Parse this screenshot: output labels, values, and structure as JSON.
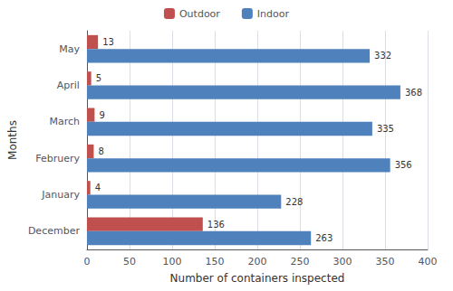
{
  "chart_data": {
    "type": "bar",
    "orientation": "horizontal",
    "categories": [
      "December",
      "January",
      "Februery",
      "March",
      "April",
      "May"
    ],
    "series": [
      {
        "name": "Outdoor",
        "color": "#C0504D",
        "values": [
          136,
          4,
          8,
          9,
          5,
          13
        ]
      },
      {
        "name": "Indoor",
        "color": "#4F81BD",
        "values": [
          263,
          228,
          356,
          335,
          368,
          332
        ]
      }
    ],
    "xlabel": "Number of containers inspected",
    "ylabel": "Months",
    "xlim": [
      0,
      400
    ],
    "xticks": [
      0,
      50,
      100,
      150,
      200,
      250,
      300,
      350,
      400
    ],
    "grid": true,
    "legend": "top",
    "data_labels": true
  }
}
